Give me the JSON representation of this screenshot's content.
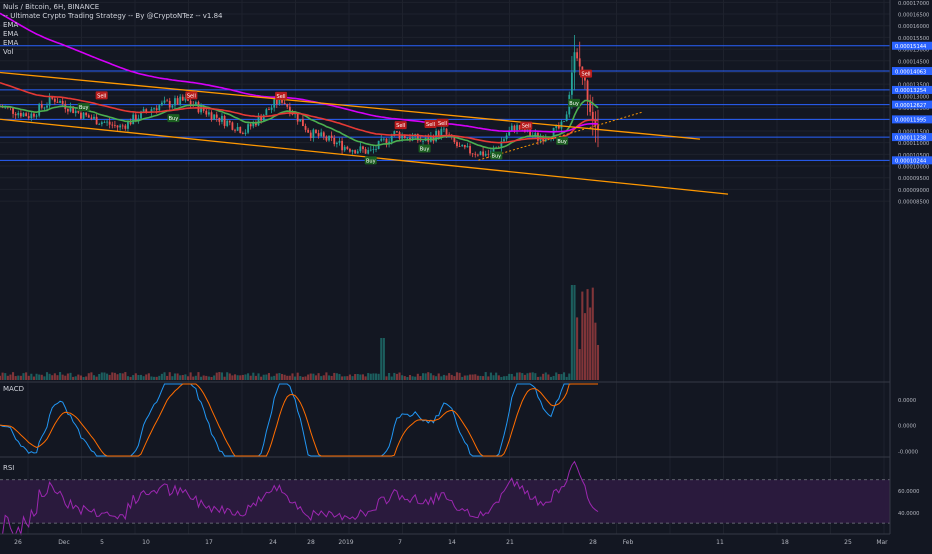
{
  "header": {
    "symbol_line": "Nuls / Bitcoin, 6H, BINANCE",
    "strategy_line": "-- Ultimate Crypto Trading Strategy -- By @CryptoNTez -- v1.84",
    "indicators": [
      "EMA",
      "EMA",
      "EMA",
      "Vol"
    ]
  },
  "panes": {
    "macd_label": "MACD",
    "rsi_label": "RSI"
  },
  "colors": {
    "background": "#131722",
    "grid": "#1e222d",
    "hline": "#2962ff",
    "channel": "#ff9800",
    "ema_fast": "#4caf50",
    "ema_mid": "#e53935",
    "ema_slow": "#d500f9",
    "up": "#26a69a",
    "down": "#ef5350",
    "macd": "#2196f3",
    "signal": "#ff6d00",
    "rsi": "#9c27b0",
    "rsi_band": "#2a1a3d"
  },
  "chart_data": [
    {
      "type": "candlestick",
      "title": "Nuls / Bitcoin, 6H, BINANCE",
      "ylim": [
        8.5e-06,
        0.000171
      ],
      "x_ticks": [
        "26",
        "Dec",
        "5",
        "10",
        "17",
        "24",
        "28",
        "2019",
        "7",
        "14",
        "21",
        "28",
        "Feb",
        "11",
        "18",
        "25",
        "Mar"
      ],
      "y_ticks": [
        "0.00017000",
        "0.00016500",
        "0.00016000",
        "0.00015500",
        "0.00015000",
        "0.00014500",
        "0.00014000",
        "0.00013500",
        "0.00013000",
        "0.00012500",
        "0.00012000",
        "0.00011500",
        "0.00011000",
        "0.00010500",
        "0.00010000",
        "0.00009500",
        "0.00009000",
        "0.00008500"
      ],
      "price_levels": [
        {
          "value": 0.00015144,
          "label": "0.00015144"
        },
        {
          "value": 0.00014063,
          "label": "0.00014063"
        },
        {
          "value": 0.00013254,
          "label": "0.00013254"
        },
        {
          "value": 0.00012627,
          "label": "0.00012627"
        },
        {
          "value": 0.00011995,
          "label": "0.00011995"
        },
        {
          "value": 0.00011238,
          "label": "0.00011238"
        },
        {
          "value": 0.00010244,
          "label": "0.00010244"
        }
      ],
      "signals": [
        {
          "text": "Sell",
          "t": 0.17,
          "price": 0.0001302
        },
        {
          "text": "Buy",
          "t": 0.14,
          "price": 0.0001252
        },
        {
          "text": "Sell",
          "t": 0.32,
          "price": 0.0001302
        },
        {
          "text": "Buy",
          "t": 0.29,
          "price": 0.0001205
        },
        {
          "text": "Sell",
          "t": 0.47,
          "price": 0.00013
        },
        {
          "text": "Buy",
          "t": 0.62,
          "price": 0.0001024
        },
        {
          "text": "Sell",
          "t": 0.67,
          "price": 0.0001175
        },
        {
          "text": "Buy",
          "t": 0.71,
          "price": 0.0001075
        },
        {
          "text": "Sell",
          "t": 0.72,
          "price": 0.000118
        },
        {
          "text": "Sell",
          "t": 0.74,
          "price": 0.0001185
        },
        {
          "text": "Buy",
          "t": 0.83,
          "price": 0.0001045
        },
        {
          "text": "Sell",
          "t": 0.88,
          "price": 0.0001173
        },
        {
          "text": "Buy",
          "t": 0.94,
          "price": 0.0001108
        },
        {
          "text": "Buy",
          "t": 0.96,
          "price": 0.000127
        },
        {
          "text": "Sell",
          "t": 0.98,
          "price": 0.0001395
        }
      ]
    },
    {
      "type": "line",
      "title": "MACD",
      "ylim": [
        -1.2e-06,
        1.6e-06
      ],
      "y_ticks": [
        "0.0000",
        "0.0000",
        "-0.0000"
      ]
    },
    {
      "type": "line",
      "title": "RSI",
      "ylim": [
        20,
        90
      ],
      "y_ticks": [
        "60.0000",
        "40.0000"
      ]
    }
  ]
}
